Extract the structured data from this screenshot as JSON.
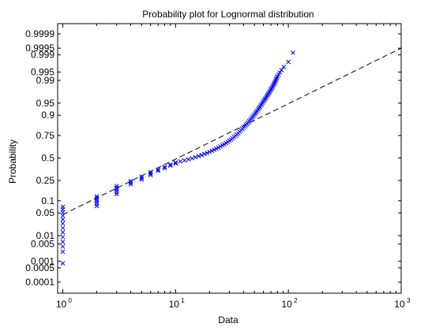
{
  "chart_data": {
    "type": "scatter",
    "title": "Probability plot for Lognormal distribution",
    "xlabel": "Data",
    "ylabel": "Probability",
    "xscale": "log",
    "yscale": "normal-probability",
    "xlim": [
      0.9,
      1000
    ],
    "x_ticks": [
      {
        "value": 1,
        "base": "10",
        "exp": "0"
      },
      {
        "value": 10,
        "base": "10",
        "exp": "1"
      },
      {
        "value": 100,
        "base": "10",
        "exp": "2"
      },
      {
        "value": 1000,
        "base": "10",
        "exp": "3"
      }
    ],
    "y_ticks": [
      {
        "p": 0.0001,
        "label": "0.0001"
      },
      {
        "p": 0.0005,
        "label": "0.0005"
      },
      {
        "p": 0.001,
        "label": "0.001"
      },
      {
        "p": 0.005,
        "label": "0.005"
      },
      {
        "p": 0.01,
        "label": "0.01"
      },
      {
        "p": 0.05,
        "label": "0.05"
      },
      {
        "p": 0.1,
        "label": "0.1"
      },
      {
        "p": 0.25,
        "label": "0.25"
      },
      {
        "p": 0.5,
        "label": "0.5"
      },
      {
        "p": 0.75,
        "label": "0.75"
      },
      {
        "p": 0.9,
        "label": "0.9"
      },
      {
        "p": 0.95,
        "label": "0.95"
      },
      {
        "p": 0.99,
        "label": "0.99"
      },
      {
        "p": 0.995,
        "label": "0.995"
      },
      {
        "p": 0.999,
        "label": "0.999"
      },
      {
        "p": 0.9995,
        "label": "0.9995"
      },
      {
        "p": 0.9999,
        "label": "0.9999"
      }
    ],
    "marker": "x",
    "marker_color": "#0000ff",
    "reference_line": {
      "style": "dashed",
      "color": "#000000",
      "points": [
        {
          "x": 1,
          "p": 0.045
        },
        {
          "x": 1000,
          "p": 0.9995
        }
      ]
    },
    "series": [
      {
        "points": [
          {
            "x": 1,
            "p": 0.0008
          },
          {
            "x": 1,
            "p": 0.0025
          },
          {
            "x": 1,
            "p": 0.004
          },
          {
            "x": 1,
            "p": 0.006
          },
          {
            "x": 1,
            "p": 0.009
          },
          {
            "x": 1,
            "p": 0.013
          },
          {
            "x": 1,
            "p": 0.018
          },
          {
            "x": 1,
            "p": 0.025
          },
          {
            "x": 1,
            "p": 0.033
          },
          {
            "x": 1,
            "p": 0.042
          },
          {
            "x": 1,
            "p": 0.052
          },
          {
            "x": 1,
            "p": 0.062
          },
          {
            "x": 1,
            "p": 0.072
          },
          {
            "x": 2,
            "p": 0.075
          },
          {
            "x": 2,
            "p": 0.085
          },
          {
            "x": 2,
            "p": 0.095
          },
          {
            "x": 2,
            "p": 0.105
          },
          {
            "x": 2,
            "p": 0.115
          },
          {
            "x": 2,
            "p": 0.125
          },
          {
            "x": 3,
            "p": 0.14
          },
          {
            "x": 3,
            "p": 0.155
          },
          {
            "x": 3,
            "p": 0.17
          },
          {
            "x": 3,
            "p": 0.185
          },
          {
            "x": 3,
            "p": 0.2
          },
          {
            "x": 4,
            "p": 0.215
          },
          {
            "x": 4,
            "p": 0.23
          },
          {
            "x": 4,
            "p": 0.245
          },
          {
            "x": 5,
            "p": 0.26
          },
          {
            "x": 5,
            "p": 0.275
          },
          {
            "x": 5,
            "p": 0.29
          },
          {
            "x": 6,
            "p": 0.305
          },
          {
            "x": 6,
            "p": 0.32
          },
          {
            "x": 6,
            "p": 0.335
          },
          {
            "x": 7,
            "p": 0.35
          },
          {
            "x": 7,
            "p": 0.365
          },
          {
            "x": 8,
            "p": 0.38
          },
          {
            "x": 8,
            "p": 0.395
          },
          {
            "x": 9,
            "p": 0.41
          },
          {
            "x": 9,
            "p": 0.422
          },
          {
            "x": 10,
            "p": 0.435
          },
          {
            "x": 10,
            "p": 0.447
          },
          {
            "x": 11,
            "p": 0.46
          },
          {
            "x": 12,
            "p": 0.472
          },
          {
            "x": 13,
            "p": 0.485
          },
          {
            "x": 14,
            "p": 0.497
          },
          {
            "x": 15,
            "p": 0.51
          },
          {
            "x": 16,
            "p": 0.522
          },
          {
            "x": 17,
            "p": 0.535
          },
          {
            "x": 18,
            "p": 0.548
          },
          {
            "x": 19,
            "p": 0.56
          },
          {
            "x": 20,
            "p": 0.573
          },
          {
            "x": 21,
            "p": 0.585
          },
          {
            "x": 22,
            "p": 0.598
          },
          {
            "x": 23,
            "p": 0.61
          },
          {
            "x": 24,
            "p": 0.622
          },
          {
            "x": 25,
            "p": 0.635
          },
          {
            "x": 26,
            "p": 0.648
          },
          {
            "x": 27,
            "p": 0.66
          },
          {
            "x": 28,
            "p": 0.672
          },
          {
            "x": 29,
            "p": 0.685
          },
          {
            "x": 30,
            "p": 0.698
          },
          {
            "x": 31,
            "p": 0.71
          },
          {
            "x": 32,
            "p": 0.722
          },
          {
            "x": 33,
            "p": 0.735
          },
          {
            "x": 34,
            "p": 0.748
          },
          {
            "x": 35,
            "p": 0.76
          },
          {
            "x": 36,
            "p": 0.772
          },
          {
            "x": 37,
            "p": 0.785
          },
          {
            "x": 38,
            "p": 0.797
          },
          {
            "x": 39,
            "p": 0.808
          },
          {
            "x": 40,
            "p": 0.818
          },
          {
            "x": 41,
            "p": 0.828
          },
          {
            "x": 42,
            "p": 0.838
          },
          {
            "x": 43,
            "p": 0.847
          },
          {
            "x": 44,
            "p": 0.856
          },
          {
            "x": 45,
            "p": 0.865
          },
          {
            "x": 46,
            "p": 0.873
          },
          {
            "x": 47,
            "p": 0.881
          },
          {
            "x": 48,
            "p": 0.889
          },
          {
            "x": 49,
            "p": 0.896
          },
          {
            "x": 50,
            "p": 0.903
          },
          {
            "x": 51,
            "p": 0.91
          },
          {
            "x": 52,
            "p": 0.916
          },
          {
            "x": 53,
            "p": 0.922
          },
          {
            "x": 54,
            "p": 0.928
          },
          {
            "x": 55,
            "p": 0.933
          },
          {
            "x": 56,
            "p": 0.938
          },
          {
            "x": 57,
            "p": 0.943
          },
          {
            "x": 58,
            "p": 0.947
          },
          {
            "x": 59,
            "p": 0.951
          },
          {
            "x": 60,
            "p": 0.955
          },
          {
            "x": 61,
            "p": 0.958
          },
          {
            "x": 62,
            "p": 0.961
          },
          {
            "x": 63,
            "p": 0.964
          },
          {
            "x": 64,
            "p": 0.967
          },
          {
            "x": 65,
            "p": 0.97
          },
          {
            "x": 66,
            "p": 0.972
          },
          {
            "x": 67,
            "p": 0.974
          },
          {
            "x": 68,
            "p": 0.976
          },
          {
            "x": 69,
            "p": 0.978
          },
          {
            "x": 70,
            "p": 0.98
          },
          {
            "x": 71,
            "p": 0.9815
          },
          {
            "x": 72,
            "p": 0.983
          },
          {
            "x": 73,
            "p": 0.9845
          },
          {
            "x": 74,
            "p": 0.986
          },
          {
            "x": 75,
            "p": 0.9873
          },
          {
            "x": 76,
            "p": 0.9885
          },
          {
            "x": 77,
            "p": 0.9897
          },
          {
            "x": 78,
            "p": 0.9908
          },
          {
            "x": 79,
            "p": 0.9918
          },
          {
            "x": 80,
            "p": 0.9928
          },
          {
            "x": 82,
            "p": 0.9938
          },
          {
            "x": 84,
            "p": 0.9948
          },
          {
            "x": 87,
            "p": 0.9958
          },
          {
            "x": 91,
            "p": 0.9968
          },
          {
            "x": 100,
            "p": 0.998
          },
          {
            "x": 110,
            "p": 0.9992
          }
        ]
      }
    ]
  }
}
